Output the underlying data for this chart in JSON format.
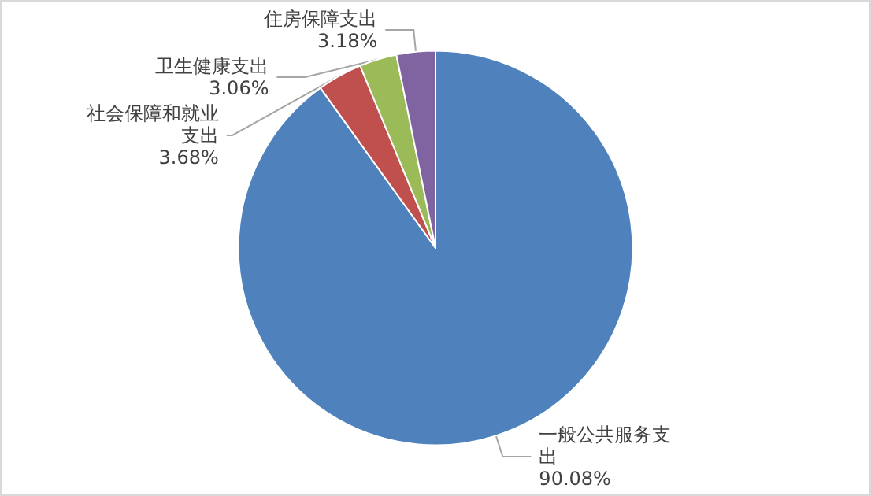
{
  "chart_data": {
    "type": "pie",
    "categories": [
      "一般公共服务支出",
      "社会保障和就业支出",
      "卫生健康支出",
      "住房保障支出"
    ],
    "values": [
      90.08,
      3.68,
      3.06,
      3.18
    ],
    "colors": [
      "#4f81bd",
      "#c0504d",
      "#9bbb59",
      "#8064a2"
    ],
    "value_labels": [
      "90.08%",
      "3.68%",
      "3.06%",
      "3.18%"
    ],
    "legend": false
  }
}
